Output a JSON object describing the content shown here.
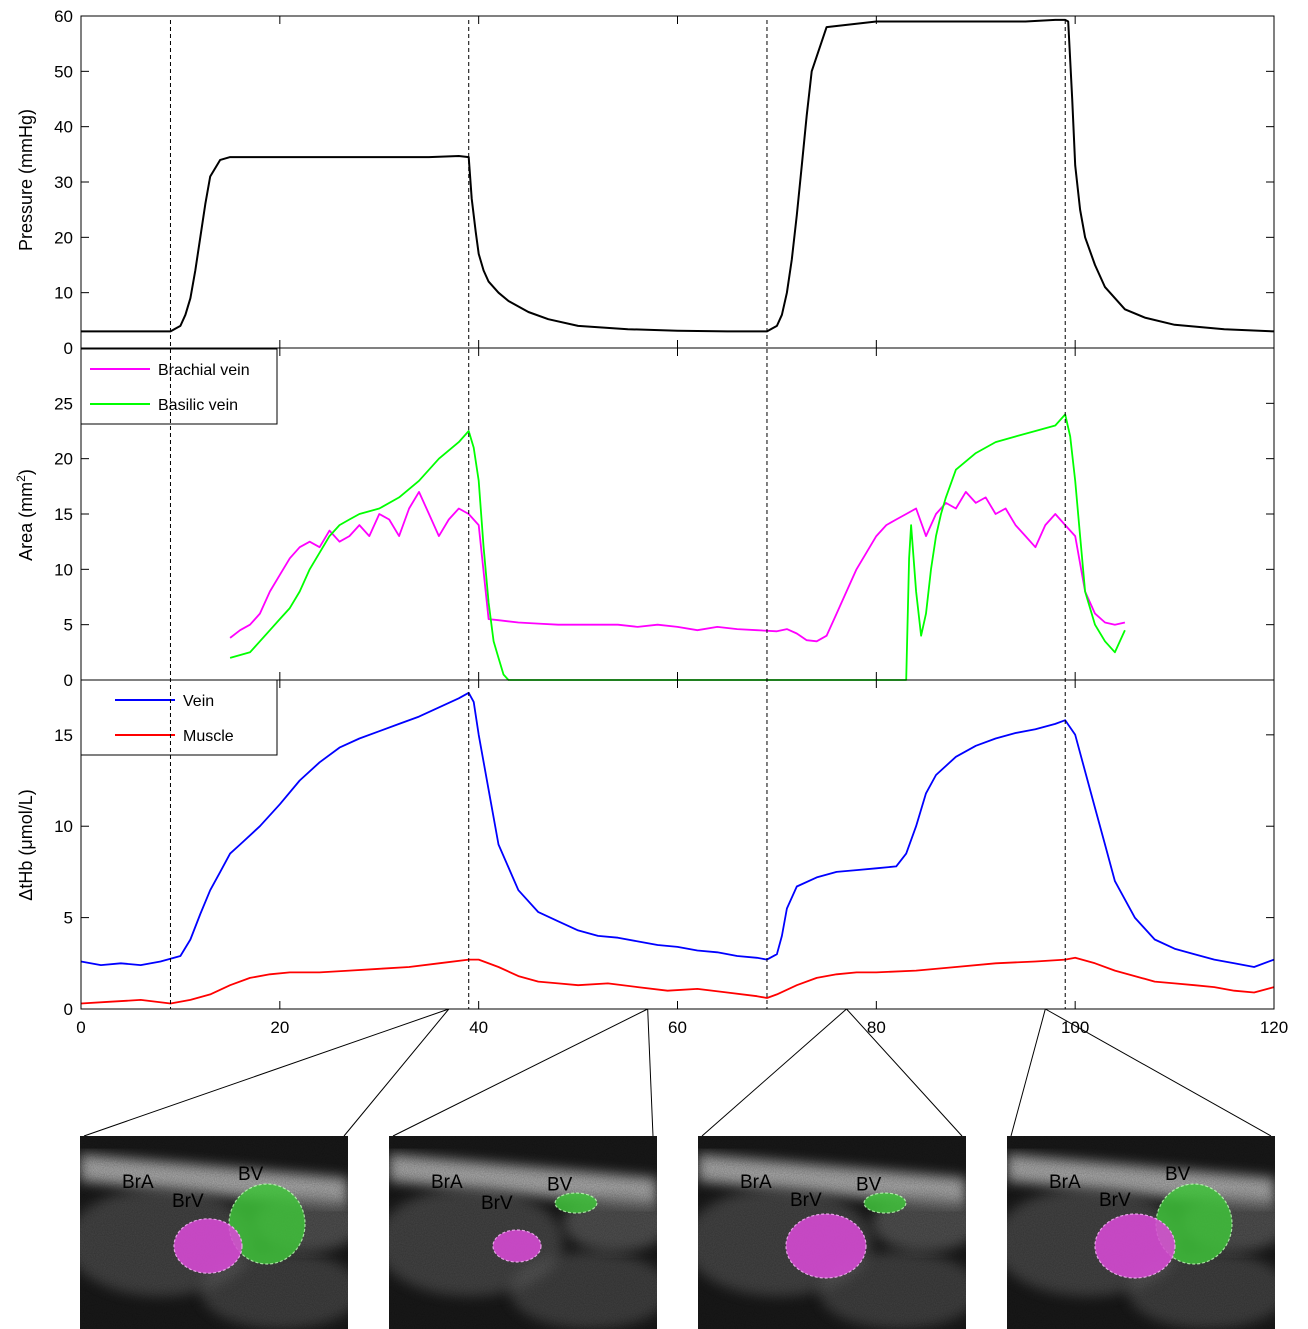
{
  "chart_data": [
    {
      "type": "line",
      "panel": "pressure",
      "ylabel": "Pressure (mmHg)",
      "xlim": [
        0,
        120
      ],
      "ylim": [
        0,
        60
      ],
      "yticks": [
        "0",
        "10",
        "20",
        "30",
        "40",
        "50",
        "60"
      ],
      "grid": false,
      "series": [
        {
          "name": "",
          "color": "#000000",
          "x": [
            0,
            8.5,
            9,
            9.5,
            10,
            10.5,
            11,
            11.5,
            12,
            12.5,
            13,
            14,
            15,
            20,
            25,
            30,
            35,
            38,
            39,
            39.3,
            39.7,
            40,
            40.5,
            41,
            42,
            43,
            45,
            47,
            50,
            55,
            60,
            65,
            68.5,
            69,
            69.5,
            70,
            70.5,
            71,
            71.5,
            72,
            72.5,
            73,
            73.5,
            75,
            80,
            85,
            90,
            95,
            98,
            99,
            99.3,
            99.7,
            100,
            100.5,
            101,
            102,
            103,
            105,
            107,
            110,
            115,
            120
          ],
          "y": [
            3,
            3,
            3,
            3.5,
            4,
            6,
            9,
            14,
            20,
            26,
            31,
            34,
            34.5,
            34.5,
            34.5,
            34.5,
            34.5,
            34.7,
            34.5,
            27,
            21,
            17,
            14,
            12,
            10,
            8.5,
            6.5,
            5.2,
            4,
            3.4,
            3.1,
            3,
            3,
            3,
            3.5,
            4,
            6,
            10,
            16,
            24,
            33,
            42,
            50,
            58,
            59,
            59,
            59,
            59,
            59.3,
            59.3,
            59,
            45,
            33,
            25,
            20,
            15,
            11,
            7,
            5.5,
            4.2,
            3.4,
            3
          ]
        }
      ]
    },
    {
      "type": "line",
      "panel": "area",
      "ylabel": "Area (mm²)",
      "xlim": [
        0,
        120
      ],
      "ylim": [
        0,
        30
      ],
      "yticks": [
        "0",
        "5",
        "10",
        "15",
        "20",
        "25"
      ],
      "grid": false,
      "legend": "top-left",
      "series": [
        {
          "name": "Brachial vein",
          "color": "#ff00ff",
          "x": [
            15,
            16,
            17,
            18,
            19,
            20,
            21,
            22,
            23,
            24,
            25,
            26,
            27,
            28,
            29,
            30,
            31,
            32,
            33,
            34,
            35,
            36,
            37,
            38,
            39,
            40,
            41,
            42,
            44,
            46,
            48,
            50,
            52,
            54,
            56,
            58,
            60,
            62,
            64,
            66,
            68,
            70,
            71,
            72,
            73,
            74,
            75,
            76,
            77,
            78,
            79,
            80,
            81,
            82,
            83,
            84,
            85,
            86,
            87,
            88,
            89,
            90,
            91,
            92,
            93,
            94,
            95,
            96,
            97,
            98,
            99,
            100,
            101,
            102,
            103,
            104,
            105
          ],
          "y": [
            3.8,
            4.5,
            5,
            6,
            8,
            9.5,
            11,
            12,
            12.5,
            12,
            13.5,
            12.5,
            13,
            14,
            13,
            15,
            14.5,
            13,
            15.5,
            17,
            15,
            13,
            14.5,
            15.5,
            15,
            14,
            5.5,
            5.4,
            5.2,
            5.1,
            5,
            5,
            5,
            5,
            4.8,
            5,
            4.8,
            4.5,
            4.8,
            4.6,
            4.5,
            4.4,
            4.6,
            4.2,
            3.6,
            3.5,
            4,
            6,
            8,
            10,
            11.5,
            13,
            14,
            14.5,
            15,
            15.5,
            13,
            15,
            16,
            15.5,
            17,
            16,
            16.5,
            15,
            15.5,
            14,
            13,
            12,
            14,
            15,
            14,
            13,
            8,
            6,
            5.2,
            5,
            5.2
          ]
        },
        {
          "name": "Basilic vein",
          "color": "#00ff00",
          "x": [
            15,
            17,
            18,
            19,
            20,
            21,
            22,
            23,
            24,
            25,
            26,
            27,
            28,
            30,
            32,
            34,
            36,
            38,
            39,
            39.5,
            40,
            40.5,
            41,
            41.5,
            42,
            42.5,
            43,
            50,
            60,
            70,
            80,
            83,
            83.3,
            83.5,
            84,
            84.5,
            85,
            85.5,
            86,
            86.5,
            87,
            88,
            90,
            92,
            94,
            96,
            98,
            99,
            99.5,
            100,
            100.5,
            101,
            102,
            103,
            104,
            105
          ],
          "y": [
            2,
            2.5,
            3.5,
            4.5,
            5.5,
            6.5,
            8,
            10,
            11.5,
            13,
            14,
            14.5,
            15,
            15.5,
            16.5,
            18,
            20,
            21.5,
            22.5,
            21,
            18,
            12,
            7,
            3.5,
            2,
            0.5,
            0,
            0,
            0,
            0,
            0,
            0,
            11,
            14,
            8,
            4,
            6,
            10,
            13,
            15,
            16.5,
            19,
            20.5,
            21.5,
            22,
            22.5,
            23,
            24,
            22,
            18,
            13,
            8,
            5,
            3.5,
            2.5,
            4.5
          ]
        }
      ]
    },
    {
      "type": "line",
      "panel": "tHb",
      "ylabel": "ΔtHb (μmol/L)",
      "xlim": [
        0,
        120
      ],
      "ylim": [
        0,
        18
      ],
      "yticks": [
        "0",
        "5",
        "10",
        "15"
      ],
      "xticks": [
        "0",
        "20",
        "40",
        "60",
        "80",
        "100",
        "120"
      ],
      "grid": false,
      "legend": "top-left",
      "series": [
        {
          "name": "Vein",
          "color": "#0000ff",
          "x": [
            0,
            2,
            4,
            6,
            8,
            10,
            11,
            12,
            13,
            14,
            15,
            16,
            18,
            20,
            22,
            24,
            26,
            28,
            30,
            32,
            34,
            36,
            38,
            39,
            39.5,
            40,
            41,
            42,
            44,
            46,
            48,
            50,
            52,
            54,
            56,
            58,
            60,
            62,
            64,
            66,
            68,
            69,
            70,
            70.5,
            71,
            72,
            74,
            76,
            78,
            80,
            82,
            83,
            84,
            85,
            86,
            88,
            90,
            92,
            94,
            96,
            98,
            99,
            100,
            101,
            102,
            103,
            104,
            106,
            108,
            110,
            112,
            114,
            116,
            118,
            120
          ],
          "y": [
            2.6,
            2.4,
            2.5,
            2.4,
            2.6,
            2.9,
            3.8,
            5.2,
            6.5,
            7.5,
            8.5,
            9,
            10,
            11.2,
            12.5,
            13.5,
            14.3,
            14.8,
            15.2,
            15.6,
            16,
            16.5,
            17,
            17.3,
            16.8,
            15,
            12,
            9,
            6.5,
            5.3,
            4.8,
            4.3,
            4,
            3.9,
            3.7,
            3.5,
            3.4,
            3.2,
            3.1,
            2.9,
            2.8,
            2.7,
            3,
            4,
            5.5,
            6.7,
            7.2,
            7.5,
            7.6,
            7.7,
            7.8,
            8.5,
            10,
            11.8,
            12.8,
            13.8,
            14.4,
            14.8,
            15.1,
            15.3,
            15.6,
            15.8,
            15,
            13,
            11,
            9,
            7,
            5,
            3.8,
            3.3,
            3,
            2.7,
            2.5,
            2.3,
            2.7
          ]
        },
        {
          "name": "Muscle",
          "color": "#ff0000",
          "x": [
            0,
            3,
            6,
            9,
            11,
            13,
            15,
            17,
            19,
            21,
            24,
            27,
            30,
            33,
            36,
            39,
            40,
            42,
            44,
            46,
            48,
            50,
            53,
            56,
            59,
            62,
            65,
            68,
            69,
            70,
            72,
            74,
            76,
            78,
            80,
            84,
            88,
            92,
            96,
            99,
            100,
            102,
            104,
            106,
            108,
            110,
            112,
            114,
            116,
            118,
            120
          ],
          "y": [
            0.3,
            0.4,
            0.5,
            0.3,
            0.5,
            0.8,
            1.3,
            1.7,
            1.9,
            2,
            2,
            2.1,
            2.2,
            2.3,
            2.5,
            2.7,
            2.7,
            2.3,
            1.8,
            1.5,
            1.4,
            1.3,
            1.4,
            1.2,
            1,
            1.1,
            0.9,
            0.7,
            0.6,
            0.8,
            1.3,
            1.7,
            1.9,
            2,
            2,
            2.1,
            2.3,
            2.5,
            2.6,
            2.7,
            2.8,
            2.5,
            2.1,
            1.8,
            1.5,
            1.4,
            1.3,
            1.2,
            1,
            0.9,
            1.2
          ]
        }
      ]
    }
  ],
  "event_markers_x": [
    9,
    39,
    69,
    99
  ],
  "insets": [
    {
      "zoom_x": 37,
      "labels": [
        "BrA",
        "BrV",
        "BV"
      ],
      "vein_area_level": {
        "brachial": 0.85,
        "basilic": 1.0
      }
    },
    {
      "zoom_x": 57,
      "labels": [
        "BrA",
        "BrV",
        "BV"
      ],
      "vein_area_level": {
        "brachial": 0.5,
        "basilic": 0.25
      }
    },
    {
      "zoom_x": 77,
      "labels": [
        "BrA",
        "BrV",
        "BV"
      ],
      "vein_area_level": {
        "brachial": 1.0,
        "basilic": 0.25
      }
    },
    {
      "zoom_x": 97,
      "labels": [
        "BrA",
        "BrV",
        "BV"
      ],
      "vein_area_level": {
        "brachial": 1.0,
        "basilic": 1.0
      }
    }
  ],
  "colors": {
    "brachial_fill": "#d94ad6",
    "basilic_fill": "#3fc23a",
    "ultrasound_dark": "#1a1a1a",
    "ultrasound_mid": "#6a6a6a",
    "ultrasound_light": "#c9c9c9"
  }
}
